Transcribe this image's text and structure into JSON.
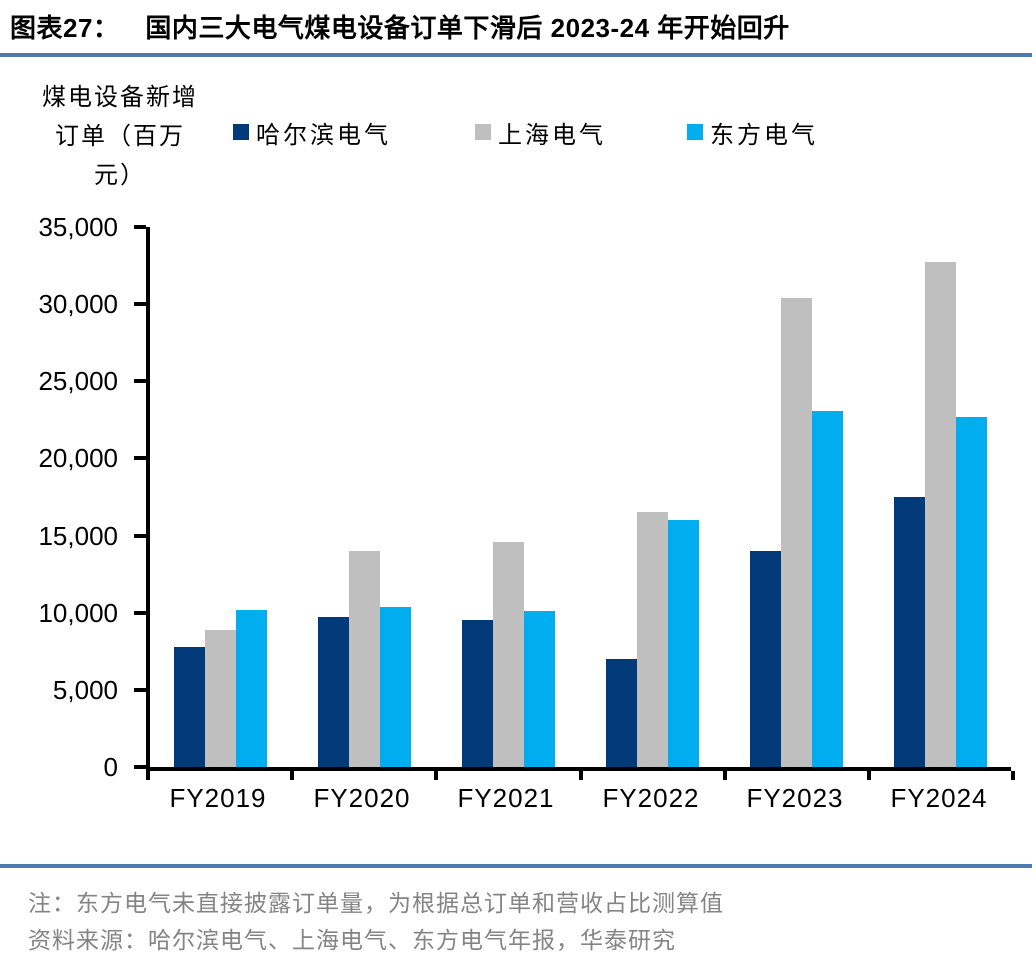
{
  "header": {
    "figure_label": "图表27：",
    "title": "国内三大电气煤电设备订单下滑后 2023-24 年开始回升"
  },
  "axis_unit_lines": [
    "煤电设备新增",
    "订单（百万",
    "元）"
  ],
  "chart_data": {
    "type": "bar",
    "categories": [
      "FY2019",
      "FY2020",
      "FY2021",
      "FY2022",
      "FY2023",
      "FY2024"
    ],
    "series": [
      {
        "name": "哈尔滨电气",
        "color": "#003a78",
        "values": [
          7800,
          9700,
          9500,
          7000,
          14000,
          17500
        ]
      },
      {
        "name": "上海电气",
        "color": "#bfbfbf",
        "values": [
          8900,
          14000,
          14600,
          16500,
          30400,
          32700
        ]
      },
      {
        "name": "东方电气",
        "color": "#00aeef",
        "values": [
          10200,
          10400,
          10100,
          16000,
          23100,
          22700
        ]
      }
    ],
    "title": "国内三大电气煤电设备订单下滑后 2023-24 年开始回升",
    "xlabel": "",
    "ylabel": "煤电设备新增订单（百万元）",
    "ylim": [
      0,
      35000
    ],
    "ytick_step": 5000,
    "ytick_labels": [
      "0",
      "5,000",
      "10,000",
      "15,000",
      "20,000",
      "25,000",
      "30,000",
      "35,000"
    ],
    "grid": false,
    "legend_position": "top"
  },
  "notes": {
    "note": "注：东方电气未直接披露订单量，为根据总订单和营收占比测算值",
    "source": "资料来源：哈尔滨电气、上海电气、东方电气年报，华泰研究"
  },
  "colors": {
    "accent_rule": "#4c7bb0",
    "axis": "#000000",
    "note_text": "#848484"
  }
}
